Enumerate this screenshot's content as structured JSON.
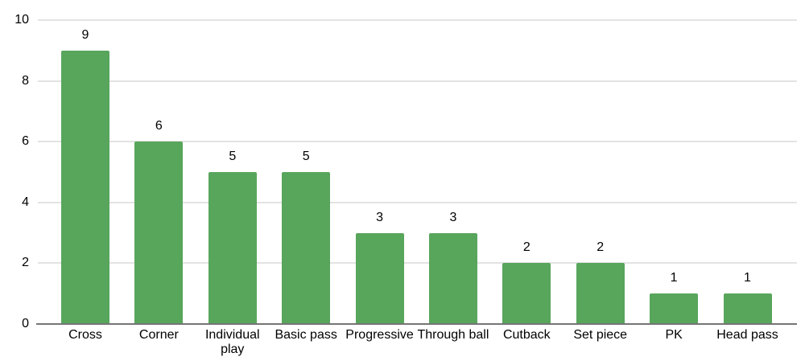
{
  "chart_data": {
    "type": "bar",
    "title": "",
    "xlabel": "",
    "ylabel": "",
    "categories": [
      "Cross",
      "Corner",
      "Individual play",
      "Basic pass",
      "Progressive",
      "Through ball",
      "Cutback",
      "Set piece",
      "PK",
      "Head pass"
    ],
    "values": [
      9,
      6,
      5,
      5,
      3,
      3,
      2,
      2,
      1,
      1
    ],
    "value_labels": [
      "9",
      "6",
      "5",
      "5",
      "3",
      "3",
      "2",
      "2",
      "1",
      "1"
    ],
    "ylim": [
      0,
      10
    ],
    "yticks": [
      0,
      2,
      4,
      6,
      8,
      10
    ],
    "grid": true,
    "legend": "none",
    "colors": {
      "bar": "#58a55c",
      "gridline": "#e3e3e3",
      "axis_line": "#757575",
      "text": "#000000",
      "background": "#ffffff"
    }
  }
}
